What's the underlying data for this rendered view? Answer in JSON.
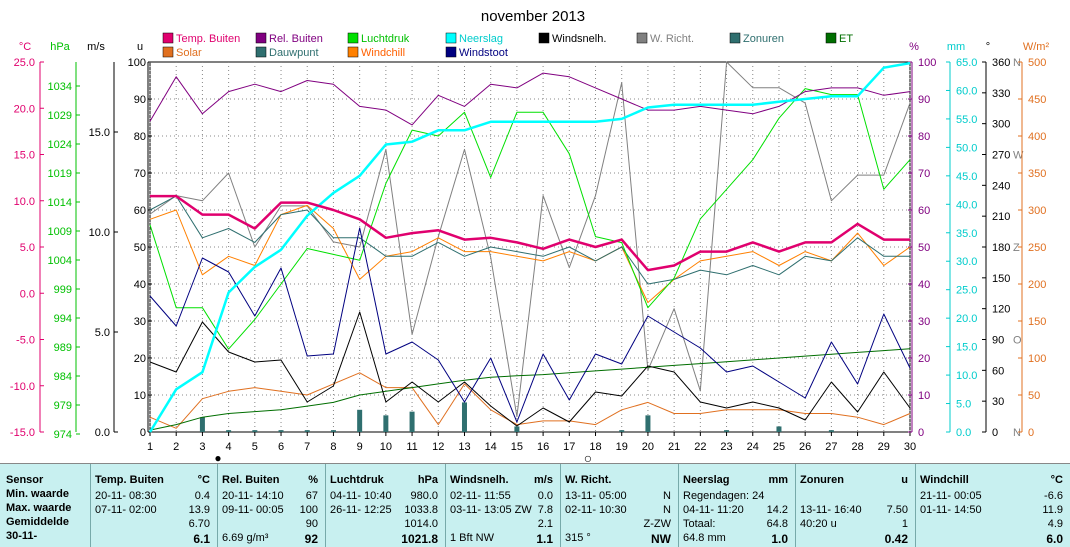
{
  "title": "november 2013",
  "colors": {
    "temp": "#e0006e",
    "hum": "#800080",
    "press": "#00e000",
    "rain": "#00ffff",
    "wind": "#000000",
    "dir": "#808080",
    "sun": "#2f6f6f",
    "et": "#006e00",
    "solar": "#e07020",
    "dew": "#2f6f6f",
    "chill": "#ff8000",
    "gust": "#000080"
  },
  "legend": [
    {
      "label": "Temp. Buiten",
      "color": "#e0006e",
      "text_color": "#e0006e"
    },
    {
      "label": "Rel. Buiten",
      "color": "#800080",
      "text_color": "#800080"
    },
    {
      "label": "Luchtdruk",
      "color": "#00e000",
      "text_color": "#00c000"
    },
    {
      "label": "Neerslag",
      "color": "#00ffff",
      "text_color": "#00cccc"
    },
    {
      "label": "Windsnelh.",
      "color": "#000000",
      "text_color": "#000000"
    },
    {
      "label": "W. Richt.",
      "color": "#808080",
      "text_color": "#808080"
    },
    {
      "label": "Zonuren",
      "color": "#2f6f6f",
      "text_color": "#2f6f6f"
    },
    {
      "label": "ET",
      "color": "#006e00",
      "text_color": "#006e00"
    },
    {
      "label": "Solar",
      "color": "#e07020",
      "text_color": "#e07020"
    },
    {
      "label": "Dauwpunt",
      "color": "#2f6f6f",
      "text_color": "#2f6f6f"
    },
    {
      "label": "Windchill",
      "color": "#ff8000",
      "text_color": "#ff6000"
    },
    {
      "label": "Windstoot",
      "color": "#000080",
      "text_color": "#000080"
    }
  ],
  "axes": {
    "temp": {
      "unit": "°C",
      "ticks": [
        "25.0",
        "20.0",
        "15.0",
        "10.0",
        "5.0",
        "0.0",
        "-5.0",
        "-10.0",
        "-15.0"
      ],
      "color": "#e0006e"
    },
    "press": {
      "unit": "hPa",
      "ticks": [
        "1034",
        "1029",
        "1024",
        "1019",
        "1014",
        "1009",
        "1004",
        "999",
        "994",
        "989",
        "984",
        "979",
        "974"
      ],
      "color": "#00c000"
    },
    "wind": {
      "unit": "m/s",
      "ticks": [
        "15.0",
        "10.0",
        "5.0",
        "0.0"
      ],
      "color": "#000000"
    },
    "hours": {
      "unit": "u",
      "ticks": [
        "100",
        "90",
        "80",
        "70",
        "60",
        "50",
        "40",
        "30",
        "20",
        "10",
        "0"
      ],
      "color": "#000000"
    },
    "hum": {
      "unit": "%",
      "ticks": [
        "100",
        "90",
        "80",
        "70",
        "60",
        "50",
        "40",
        "30",
        "20",
        "10",
        "0"
      ],
      "color": "#800080"
    },
    "rain": {
      "unit": "mm",
      "ticks": [
        "65.0",
        "60.0",
        "55.0",
        "50.0",
        "45.0",
        "40.0",
        "35.0",
        "30.0",
        "25.0",
        "20.0",
        "15.0",
        "10.0",
        "5.0",
        "0.0"
      ],
      "color": "#00cccc"
    },
    "dir": {
      "unit": "°",
      "ticks": [
        "360",
        "330",
        "300",
        "270",
        "240",
        "210",
        "180",
        "150",
        "120",
        "90",
        "60",
        "30",
        "0"
      ],
      "compass": [
        "N",
        "W",
        "Z",
        "O",
        "N"
      ],
      "color": "#000000"
    },
    "solar": {
      "unit": "W/m²",
      "ticks": [
        "500",
        "450",
        "400",
        "350",
        "300",
        "250",
        "200",
        "150",
        "100",
        "50",
        "0"
      ],
      "color": "#e07020"
    },
    "x_ticks": [
      "1",
      "2",
      "3",
      "4",
      "5",
      "6",
      "7",
      "8",
      "9",
      "10",
      "11",
      "12",
      "13",
      "14",
      "15",
      "16",
      "17",
      "18",
      "19",
      "20",
      "21",
      "22",
      "23",
      "24",
      "25",
      "26",
      "27",
      "28",
      "29",
      "30"
    ]
  },
  "chart_data": {
    "type": "line",
    "title": "november 2013",
    "x": [
      1,
      2,
      3,
      4,
      5,
      6,
      7,
      8,
      9,
      10,
      11,
      12,
      13,
      14,
      15,
      16,
      17,
      18,
      19,
      20,
      21,
      22,
      23,
      24,
      25,
      26,
      27,
      28,
      29,
      30
    ],
    "xlim": [
      1,
      30
    ],
    "series": [
      {
        "name": "Temp. Buiten",
        "unit": "°C",
        "ylim": [
          -15,
          25
        ],
        "values": [
          10.5,
          10.5,
          8.5,
          8.5,
          7.0,
          9.8,
          9.8,
          9.0,
          8.0,
          6.0,
          6.5,
          6.8,
          5.8,
          6.0,
          5.5,
          4.8,
          5.8,
          5.0,
          5.8,
          2.5,
          3.0,
          4.5,
          4.5,
          5.5,
          4.5,
          5.5,
          5.5,
          7.5,
          5.8,
          5.8
        ]
      },
      {
        "name": "Rel. Buiten",
        "unit": "%",
        "ylim": [
          0,
          100
        ],
        "values": [
          84,
          96,
          86,
          92,
          94,
          92,
          95,
          94,
          88,
          87,
          83,
          91,
          88,
          94,
          93,
          97,
          96,
          93,
          90,
          87,
          87,
          88,
          87,
          86,
          88,
          92,
          93,
          93,
          91,
          92
        ]
      },
      {
        "name": "Luchtdruk",
        "unit": "hPa",
        "ylim": [
          974,
          1036.5
        ],
        "values": [
          1009,
          995,
          995,
          988,
          993,
          999,
          1005,
          1004,
          1003,
          1016,
          1025,
          1024,
          1028,
          1017,
          1028,
          1028,
          1021,
          1007,
          1006,
          995,
          1000,
          1010,
          1015,
          1020,
          1027,
          1032,
          1031,
          1031,
          1015,
          1020
        ]
      },
      {
        "name": "Neerslag",
        "unit": "mm",
        "ylim": [
          0,
          65
        ],
        "values": [
          0,
          7.5,
          10.5,
          24.5,
          29,
          32,
          38,
          42,
          45,
          50.5,
          51,
          53,
          53,
          54.5,
          54.5,
          54.5,
          54.5,
          54.5,
          55,
          57,
          57.5,
          57.5,
          57.5,
          57.5,
          58,
          58.5,
          59,
          59,
          64,
          64.8
        ]
      },
      {
        "name": "Windsnelh.",
        "unit": "m/s",
        "ylim": [
          0,
          18.5
        ],
        "values": [
          3.5,
          3.0,
          5.5,
          4.0,
          3.5,
          3.6,
          1.5,
          2.3,
          6.0,
          1.5,
          2.5,
          1.5,
          2.5,
          1.3,
          0.3,
          1.2,
          0.5,
          2.0,
          1.8,
          3.3,
          3.0,
          1.5,
          1.2,
          1.5,
          1.2,
          0.6,
          2.5,
          1.0,
          3.0,
          1.2
        ]
      },
      {
        "name": "W. Richt.",
        "unit": "°",
        "ylim": [
          0,
          360
        ],
        "values": [
          212,
          230,
          225,
          252,
          180,
          220,
          220,
          185,
          180,
          275,
          95,
          190,
          275,
          170,
          15,
          230,
          160,
          230,
          340,
          60,
          120,
          40,
          360,
          335,
          335,
          320,
          225,
          250,
          250,
          320
        ]
      },
      {
        "name": "Zonuren",
        "unit": "u",
        "ylim": [
          0,
          100
        ],
        "values": [
          0,
          0,
          4.0,
          0.5,
          0.5,
          0.5,
          0.5,
          0.5,
          6.0,
          4.5,
          5.5,
          0,
          8.0,
          0,
          1.5,
          0,
          0,
          0,
          0.5,
          4.5,
          0,
          0,
          0.5,
          0,
          1.5,
          0,
          0.5,
          0,
          0,
          0
        ]
      },
      {
        "name": "ET",
        "unit": "u",
        "ylim": [
          0,
          100
        ],
        "values": [
          0.5,
          2.0,
          4.0,
          5.0,
          5.5,
          6.0,
          7.0,
          8.0,
          10.0,
          11.0,
          12.0,
          13.0,
          14.0,
          14.8,
          15.2,
          15.5,
          16.0,
          16.5,
          17.0,
          17.5,
          18.0,
          18.5,
          19.0,
          19.5,
          20.0,
          20.5,
          21.0,
          21.5,
          22.0,
          22.5
        ]
      },
      {
        "name": "Solar",
        "unit": "W/m²",
        "ylim": [
          0,
          500
        ],
        "values": [
          20,
          5,
          45,
          55,
          60,
          55,
          50,
          65,
          80,
          60,
          60,
          10,
          65,
          30,
          10,
          15,
          15,
          10,
          30,
          40,
          25,
          25,
          30,
          30,
          30,
          25,
          25,
          20,
          10,
          25
        ]
      },
      {
        "name": "Dauwpunt",
        "unit": "°C",
        "ylim": [
          -15,
          25
        ],
        "values": [
          9.0,
          10.5,
          6.0,
          7.0,
          5.5,
          8.5,
          9.0,
          6.0,
          6.0,
          4.0,
          4.0,
          5.5,
          4.0,
          5.0,
          4.5,
          4.0,
          5.0,
          3.5,
          5.0,
          1.0,
          1.5,
          2.5,
          2.0,
          3.0,
          2.0,
          4.0,
          3.5,
          6.0,
          4.0,
          4.0
        ]
      },
      {
        "name": "Windchill",
        "unit": "°C",
        "ylim": [
          -15,
          25
        ],
        "values": [
          8.0,
          9.0,
          2.0,
          4.0,
          3.0,
          8.5,
          9.5,
          7.0,
          1.5,
          4.0,
          4.5,
          6.0,
          4.5,
          4.5,
          4.0,
          3.5,
          4.5,
          3.5,
          5.0,
          -1.0,
          1.5,
          3.5,
          4.0,
          4.5,
          3.0,
          4.5,
          3.5,
          6.5,
          3.0,
          5.0
        ]
      },
      {
        "name": "Windstoot",
        "unit": "m/s",
        "ylim": [
          0,
          18.5
        ],
        "values": [
          6.8,
          5.3,
          8.7,
          8.0,
          5.8,
          8.2,
          3.8,
          3.9,
          10.2,
          3.9,
          4.5,
          3.6,
          1.5,
          3.7,
          0.5,
          3.9,
          1.6,
          3.9,
          3.4,
          5.8,
          5.0,
          4.2,
          3.0,
          3.3,
          2.5,
          1.7,
          4.5,
          2.4,
          5.9,
          3.2
        ]
      }
    ]
  },
  "moon_phases": [
    "●",
    "○"
  ],
  "table": {
    "row_labels": [
      "Sensor",
      "Min. waarde",
      "Max. waarde",
      "Gemiddelde",
      "30-11-"
    ],
    "columns": [
      {
        "head": "Temp. Buiten",
        "unit": "°C",
        "rows": [
          [
            "20-11- 08:30",
            "0.4"
          ],
          [
            "07-11- 02:00",
            "13.9"
          ],
          [
            "",
            "6.70"
          ],
          [
            "",
            "6.1"
          ]
        ]
      },
      {
        "head": "Rel. Buiten",
        "unit": "%",
        "rows": [
          [
            "20-11- 14:10",
            "67"
          ],
          [
            "09-11- 00:05",
            "100"
          ],
          [
            "",
            "90"
          ],
          [
            "6.69 g/m³",
            "92"
          ]
        ]
      },
      {
        "head": "Luchtdruk",
        "unit": "hPa",
        "rows": [
          [
            "04-11- 10:40",
            "980.0"
          ],
          [
            "26-11- 12:25",
            "1033.8"
          ],
          [
            "",
            "1014.0"
          ],
          [
            "",
            "1021.8"
          ]
        ]
      },
      {
        "head": "Windsnelh.",
        "unit": "m/s",
        "rows": [
          [
            "02-11- 11:55",
            "0.0"
          ],
          [
            "03-11- 13:05 ZW",
            "7.8"
          ],
          [
            "",
            "2.1"
          ],
          [
            "1 Bft NW",
            "1.1"
          ]
        ]
      },
      {
        "head": "W. Richt.",
        "unit": "",
        "rows": [
          [
            "13-11- 05:00",
            "N"
          ],
          [
            "02-11- 10:30",
            "N"
          ],
          [
            "",
            "Z-ZW"
          ],
          [
            "315 °",
            "NW"
          ]
        ]
      },
      {
        "head": "Neerslag",
        "unit": "mm",
        "rows": [
          [
            "Regendagen: 24",
            ""
          ],
          [
            "04-11- 11:20",
            "14.2"
          ],
          [
            "Totaal:",
            "64.8"
          ],
          [
            "64.8 mm",
            "1.0"
          ]
        ]
      },
      {
        "head": "Zonuren",
        "unit": "u",
        "rows": [
          [
            "",
            ""
          ],
          [
            "13-11- 16:40",
            "7.50"
          ],
          [
            "40:20 u",
            "1"
          ],
          [
            "",
            "0.42"
          ]
        ]
      },
      {
        "head": "Windchill",
        "unit": "°C",
        "rows": [
          [
            "21-11- 00:05",
            "-6.6"
          ],
          [
            "01-11- 14:50",
            "11.9"
          ],
          [
            "",
            "4.9"
          ],
          [
            "",
            "6.0"
          ]
        ]
      }
    ]
  }
}
